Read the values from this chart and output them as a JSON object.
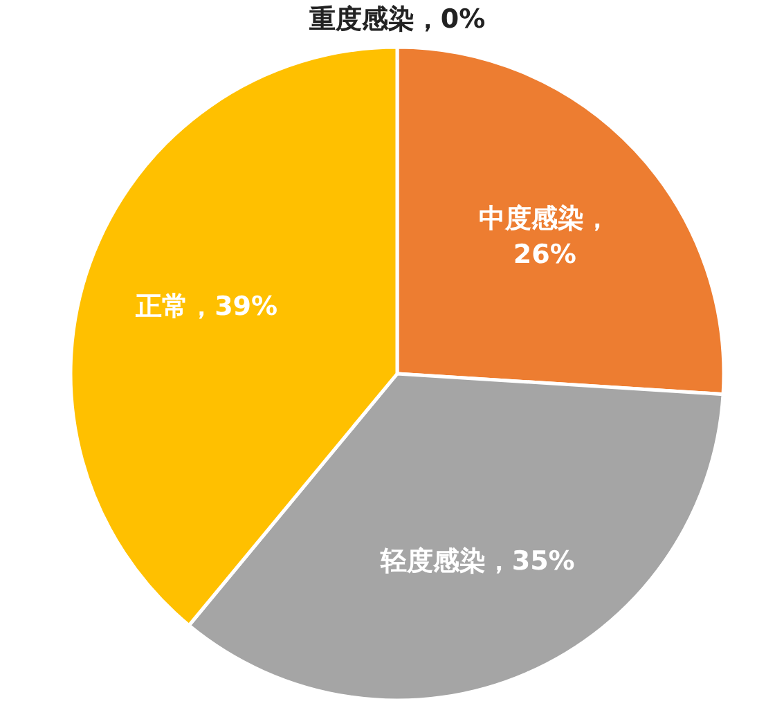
{
  "chart_data": {
    "type": "pie",
    "categories": [
      "重度感染",
      "中度感染",
      "轻度感染",
      "正常"
    ],
    "values": [
      0,
      26,
      35,
      39
    ],
    "colors": [
      "#5b9bd5",
      "#ed7d31",
      "#a5a5a5",
      "#ffc000"
    ],
    "value_labels": [
      "，0%",
      "，\n26%",
      "，35%",
      "，39%"
    ],
    "legend": false
  }
}
